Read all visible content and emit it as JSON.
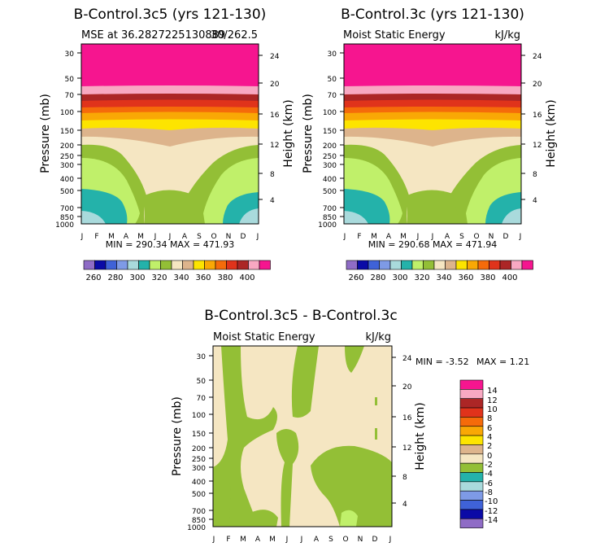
{
  "chart_data": [
    {
      "type": "heatmap",
      "title": "B-Control.3c5 (yrs 121-130)",
      "left_subtitle": "MSE at 36.2827225130889",
      "right_subtitle": "30/262.5",
      "ylabel": "Pressure (mb)",
      "y2label": "Height (km)",
      "pressure_ticks": [
        "30",
        "50",
        "70",
        "100",
        "150",
        "200",
        "250",
        "300",
        "400",
        "500",
        "700",
        "850",
        "1000"
      ],
      "height_ticks": [
        "24",
        "20",
        "16",
        "12",
        "8",
        "4"
      ],
      "month_labels": [
        "J",
        "F",
        "M",
        "A",
        "M",
        "J",
        "J",
        "A",
        "S",
        "O",
        "N",
        "D",
        "J"
      ],
      "stats": "MIN = 290.34 MAX = 471.93",
      "colorbar_labels": [
        "260",
        "280",
        "300",
        "320",
        "340",
        "360",
        "380",
        "400"
      ]
    },
    {
      "type": "heatmap",
      "title": "B-Control.3c (yrs 121-130)",
      "left_subtitle": "Moist Static Energy",
      "right_subtitle": "kJ/kg",
      "ylabel": "Pressure (mb)",
      "y2label": "Height (km)",
      "pressure_ticks": [
        "30",
        "50",
        "70",
        "100",
        "150",
        "200",
        "250",
        "300",
        "400",
        "500",
        "700",
        "850",
        "1000"
      ],
      "height_ticks": [
        "24",
        "20",
        "16",
        "12",
        "8",
        "4"
      ],
      "month_labels": [
        "J",
        "F",
        "M",
        "A",
        "M",
        "J",
        "J",
        "A",
        "S",
        "O",
        "N",
        "D",
        "J"
      ],
      "stats": "MIN = 290.68 MAX = 471.94",
      "colorbar_labels": [
        "260",
        "280",
        "300",
        "320",
        "340",
        "360",
        "380",
        "400"
      ]
    },
    {
      "type": "heatmap",
      "title": "B-Control.3c5 - B-Control.3c",
      "left_subtitle": "Moist Static Energy",
      "right_subtitle": "kJ/kg",
      "ylabel": "Pressure (mb)",
      "y2label": "Height (km)",
      "pressure_ticks": [
        "30",
        "50",
        "70",
        "100",
        "150",
        "200",
        "250",
        "300",
        "400",
        "500",
        "700",
        "850",
        "1000"
      ],
      "height_ticks": [
        "24",
        "20",
        "16",
        "12",
        "8",
        "4"
      ],
      "month_labels": [
        "J",
        "F",
        "M",
        "A",
        "M",
        "J",
        "J",
        "A",
        "S",
        "O",
        "N",
        "D",
        "J"
      ],
      "stats_min": "MIN = -3.52",
      "stats_max": "MAX = 1.21",
      "colorbar_labels": [
        "14",
        "12",
        "10",
        "8",
        "6",
        "4",
        "2",
        "0",
        "-2",
        "-4",
        "-6",
        "-8",
        "-10",
        "-12",
        "-14"
      ]
    }
  ],
  "palette": {
    "mse_levels": [
      "#8f6cc6",
      "#0a0aa6",
      "#3f62d8",
      "#7e9ae6",
      "#a9dadc",
      "#24b2aa",
      "#c0f06a",
      "#93bf36",
      "#f5e6c2",
      "#ddb48c",
      "#fde400",
      "#f9a805",
      "#f56b0a",
      "#e0331b",
      "#ac2626",
      "#f8a8c2",
      "#f6158f"
    ],
    "diff_levels": [
      "#f6158f",
      "#f8a8c2",
      "#ac2626",
      "#e0331b",
      "#f56b0a",
      "#f9a805",
      "#fde400",
      "#ddb48c",
      "#f5e6c2",
      "#93bf36",
      "#24b2aa",
      "#a9dadc",
      "#7e9ae6",
      "#3f62d8",
      "#0a0aa6",
      "#8f6cc6"
    ]
  }
}
